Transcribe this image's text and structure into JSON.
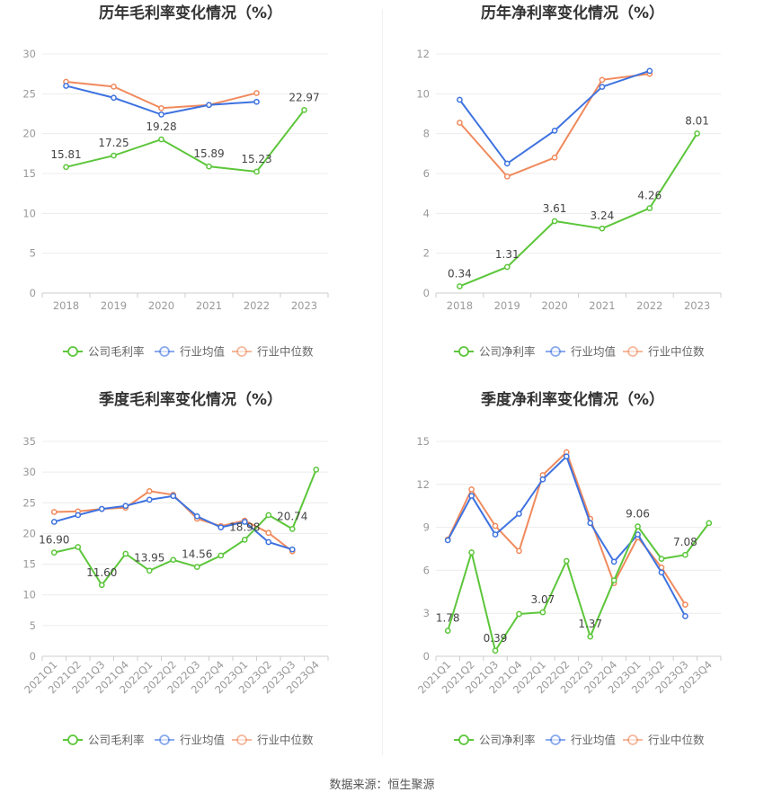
{
  "source_text": "数据来源：恒生聚源",
  "colors": {
    "company": "#5cc63a",
    "industry_avg": "#3d72e0",
    "industry_median": "#f08a5d"
  },
  "chart_data": [
    {
      "type": "line",
      "title": "历年毛利率变化情况（%）",
      "categories": [
        "2018",
        "2019",
        "2020",
        "2021",
        "2022",
        "2023"
      ],
      "ylim": [
        0,
        30
      ],
      "yticks": [
        0,
        5,
        10,
        15,
        20,
        25,
        30
      ],
      "rotate_x": false,
      "series": [
        {
          "name": "公司毛利率",
          "key": "company",
          "values": [
            15.81,
            17.25,
            19.28,
            15.89,
            15.23,
            22.97
          ],
          "labels": [
            "15.81",
            "17.25",
            "19.28",
            "15.89",
            "15.23",
            "22.97"
          ]
        },
        {
          "name": "行业均值",
          "key": "industry_avg",
          "values": [
            26.0,
            24.5,
            22.4,
            23.6,
            24.0,
            null
          ]
        },
        {
          "name": "行业中位数",
          "key": "industry_median",
          "values": [
            26.5,
            25.9,
            23.2,
            23.6,
            25.1,
            null
          ]
        }
      ]
    },
    {
      "type": "line",
      "title": "历年净利率变化情况（%）",
      "categories": [
        "2018",
        "2019",
        "2020",
        "2021",
        "2022",
        "2023"
      ],
      "ylim": [
        0,
        12
      ],
      "yticks": [
        0,
        2,
        4,
        6,
        8,
        10,
        12
      ],
      "rotate_x": false,
      "series": [
        {
          "name": "公司净利率",
          "key": "company",
          "values": [
            0.34,
            1.31,
            3.61,
            3.24,
            4.26,
            8.01
          ],
          "labels": [
            "0.34",
            "1.31",
            "3.61",
            "3.24",
            "4.26",
            "8.01"
          ]
        },
        {
          "name": "行业均值",
          "key": "industry_avg",
          "values": [
            9.7,
            6.5,
            8.15,
            10.35,
            11.15,
            null
          ]
        },
        {
          "name": "行业中位数",
          "key": "industry_median",
          "values": [
            8.55,
            5.85,
            6.8,
            10.7,
            11.0,
            null
          ]
        }
      ]
    },
    {
      "type": "line",
      "title": "季度毛利率变化情况（%）",
      "categories": [
        "2021Q1",
        "2021Q2",
        "2021Q3",
        "2021Q4",
        "2022Q1",
        "2022Q2",
        "2022Q3",
        "2022Q4",
        "2023Q1",
        "2023Q2",
        "2023Q3",
        "2023Q4"
      ],
      "ylim": [
        0,
        35
      ],
      "yticks": [
        0,
        5,
        10,
        15,
        20,
        25,
        30,
        35
      ],
      "rotate_x": true,
      "series": [
        {
          "name": "公司毛利率",
          "key": "company",
          "values": [
            16.9,
            17.8,
            11.6,
            16.7,
            13.95,
            15.7,
            14.56,
            16.4,
            18.98,
            23.0,
            20.74,
            30.4
          ],
          "labels": [
            "16.90",
            "",
            "11.60",
            "",
            "13.95",
            "",
            "14.56",
            "",
            "18.98",
            "",
            "20.74",
            ""
          ]
        },
        {
          "name": "行业均值",
          "key": "industry_avg",
          "values": [
            21.9,
            23.0,
            24.0,
            24.5,
            25.5,
            26.1,
            22.8,
            21.0,
            21.9,
            18.6,
            17.4,
            null
          ]
        },
        {
          "name": "行业中位数",
          "key": "industry_median",
          "values": [
            23.5,
            23.6,
            24.0,
            24.2,
            26.9,
            26.3,
            22.4,
            21.2,
            22.1,
            20.1,
            17.1,
            null
          ]
        }
      ]
    },
    {
      "type": "line",
      "title": "季度净利率变化情况（%）",
      "categories": [
        "2021Q1",
        "2021Q2",
        "2021Q3",
        "2021Q4",
        "2022Q1",
        "2022Q2",
        "2022Q3",
        "2022Q4",
        "2023Q1",
        "2023Q2",
        "2023Q3",
        "2023Q4"
      ],
      "ylim": [
        0,
        15
      ],
      "yticks": [
        0,
        3,
        6,
        9,
        12,
        15
      ],
      "rotate_x": true,
      "series": [
        {
          "name": "公司净利率",
          "key": "company",
          "values": [
            1.78,
            7.25,
            0.39,
            2.95,
            3.07,
            6.65,
            1.37,
            5.3,
            9.06,
            6.8,
            7.08,
            9.3
          ],
          "labels": [
            "1.78",
            "",
            "0.39",
            "",
            "3.07",
            "",
            "1.37",
            "",
            "9.06",
            "",
            "7.08",
            ""
          ]
        },
        {
          "name": "行业均值",
          "key": "industry_avg",
          "values": [
            8.1,
            11.2,
            8.5,
            9.95,
            12.35,
            13.95,
            9.3,
            6.6,
            8.5,
            5.85,
            2.8,
            null
          ]
        },
        {
          "name": "行业中位数",
          "key": "industry_median",
          "values": [
            8.15,
            11.65,
            9.1,
            7.35,
            12.65,
            14.25,
            9.6,
            5.1,
            8.3,
            6.2,
            3.6,
            null
          ]
        }
      ]
    }
  ]
}
